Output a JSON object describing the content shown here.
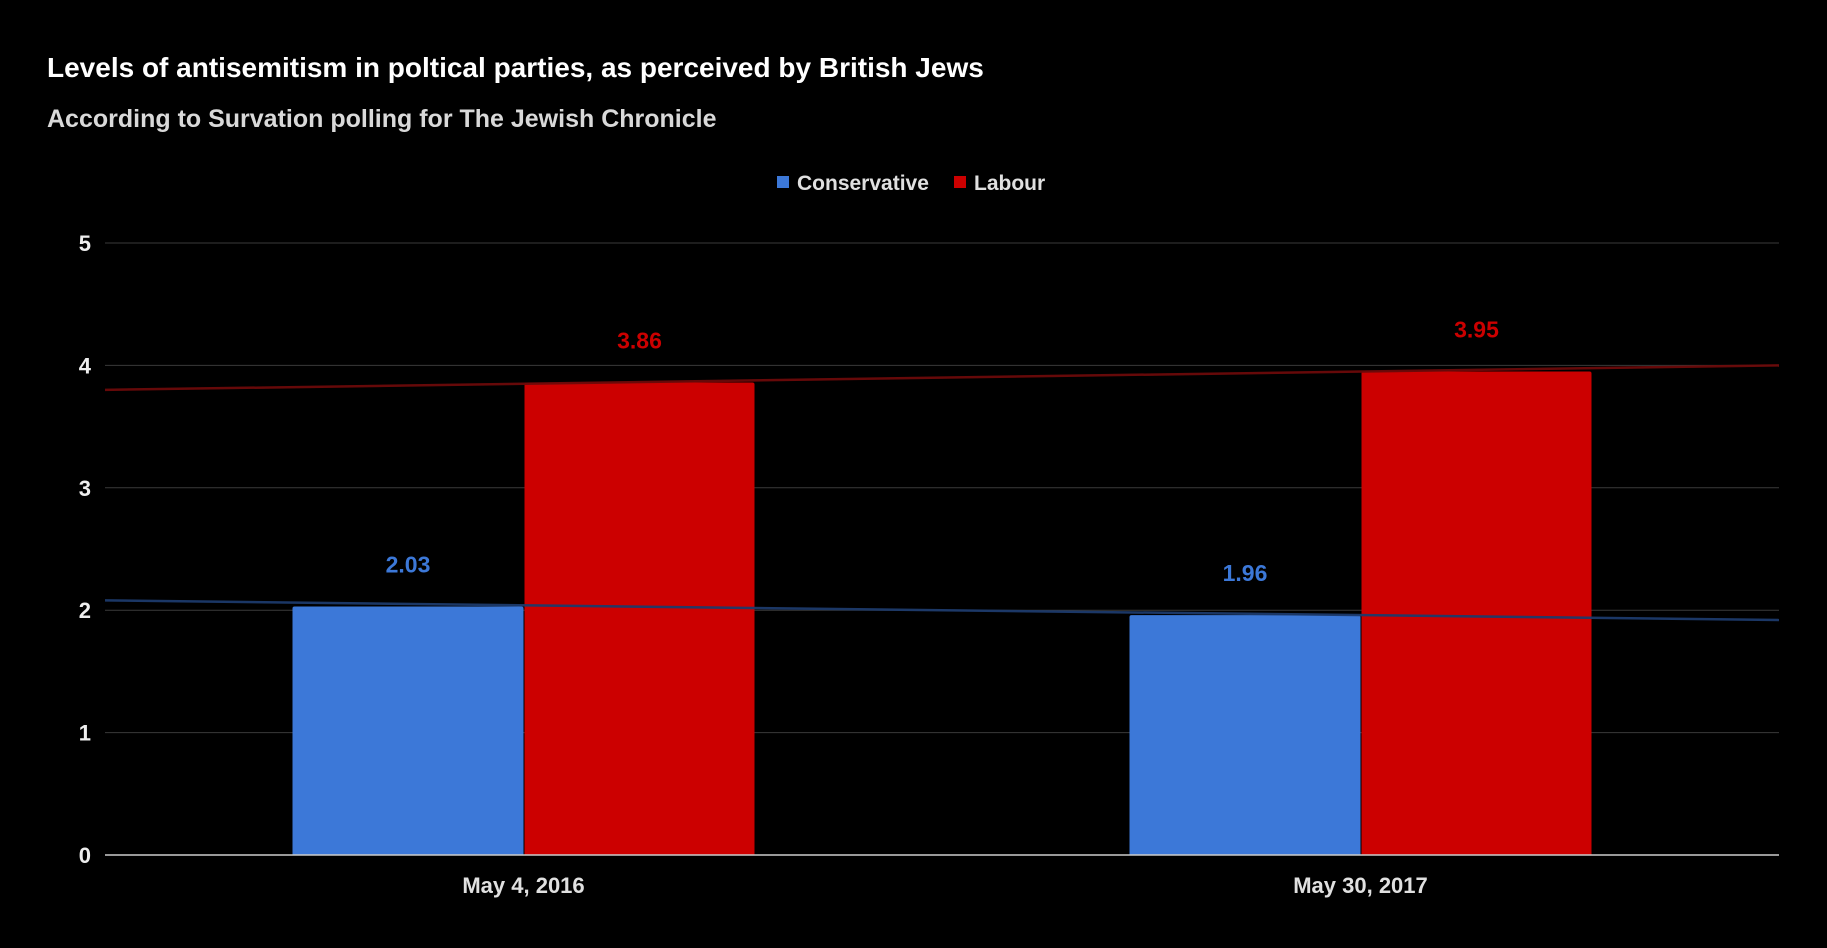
{
  "chart_data": {
    "type": "bar",
    "title": "Levels of antisemitism in poltical parties, as perceived by British Jews",
    "subtitle": "According to Survation polling for The Jewish Chronicle",
    "xlabel": "",
    "ylabel": "",
    "categories": [
      "May 4, 2016",
      "May 30, 2017"
    ],
    "series": [
      {
        "name": "Conservative",
        "color": "#3c78d8",
        "values": [
          2.03,
          1.96
        ],
        "data_labels": [
          "2.03",
          "1.96"
        ],
        "trendline": {
          "type": "linear",
          "color": "#1c3a6b",
          "start": 2.08,
          "end": 1.92
        }
      },
      {
        "name": "Labour",
        "color": "#cc0000",
        "values": [
          3.86,
          3.95
        ],
        "data_labels": [
          "3.86",
          "3.95"
        ],
        "trendline": {
          "type": "linear",
          "color": "#6b0a0a",
          "start": 3.8,
          "end": 4.0
        }
      }
    ],
    "ylim": [
      0,
      5
    ],
    "yticks": [
      "0",
      "1",
      "2",
      "3",
      "4",
      "5"
    ],
    "grid": true,
    "legend": "top-center",
    "background": "#000000"
  }
}
